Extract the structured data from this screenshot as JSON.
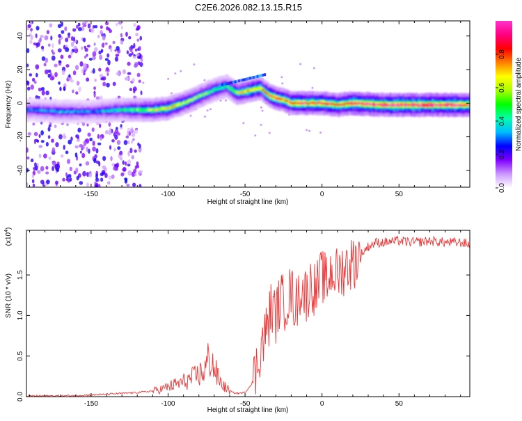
{
  "title": "C2E6.2026.082.13.15.R15",
  "charts": {
    "top": {
      "xlabel": "Height of straight line (km)",
      "ylabel": "Frequency (Hz)",
      "colorbar_label": "Normalized spectral amplitude"
    },
    "bottom": {
      "xlabel": "Height of straight line (km)",
      "ylabel": "SNR (10 * v/v)",
      "exponent_label": "(x10",
      "exponent_power": "4",
      "exponent_close": ")"
    }
  },
  "chart_data": [
    {
      "type": "heatmap",
      "title": "C2E6.2026.082.13.15.R15",
      "xlabel": "Height of straight line (km)",
      "ylabel": "Frequency (Hz)",
      "xlim": [
        -192,
        96
      ],
      "ylim": [
        -50,
        49
      ],
      "x_ticks": [
        "-150",
        "-100",
        "-50",
        "0",
        "50"
      ],
      "x_tick_values": [
        -150,
        -100,
        -50,
        0,
        50
      ],
      "y_ticks": [
        "-40",
        "-20",
        "0",
        "20",
        "40"
      ],
      "y_tick_values": [
        -40,
        -20,
        0,
        20,
        40
      ],
      "ridge": {
        "x": [
          -190,
          -170,
          -150,
          -130,
          -110,
          -100,
          -90,
          -80,
          -70,
          -62,
          -55,
          -50,
          -45,
          -40,
          -35,
          -30,
          -25,
          -20,
          -10,
          0,
          10,
          20,
          40,
          60,
          80,
          95
        ],
        "y": [
          -4,
          -5,
          -5,
          -4,
          -4,
          -3,
          0,
          4,
          8,
          10,
          6,
          7,
          8,
          9,
          5,
          3,
          2,
          0,
          0,
          0,
          -1,
          0,
          -1,
          -1,
          -1,
          -1
        ],
        "peak_amplitude": [
          0.3,
          0.35,
          0.3,
          0.45,
          0.6,
          0.7,
          0.6,
          0.55,
          0.5,
          0.45,
          0.65,
          0.7,
          0.75,
          0.7,
          0.8,
          0.85,
          0.8,
          0.85,
          0.9,
          0.9,
          0.85,
          0.95,
          1.0,
          1.0,
          1.0,
          0.95
        ]
      },
      "colorbar": {
        "label": "Normalized spectral amplitude",
        "range": [
          0,
          1
        ],
        "ticks": [
          "0.0",
          "0.2",
          "0.4",
          "0.6",
          "0.8"
        ],
        "tick_values": [
          0,
          0.2,
          0.4,
          0.6,
          0.8
        ],
        "colors": [
          "#ffffff",
          "#cc99ff",
          "#8000ff",
          "#0000ff",
          "#00bbff",
          "#00ffaa",
          "#00ff00",
          "#aaff00",
          "#ffff00",
          "#ff8000",
          "#ff0000",
          "#ff0080",
          "#ff33cc"
        ]
      },
      "grid": false
    },
    {
      "type": "line",
      "xlabel": "Height of straight line (km)",
      "ylabel": "SNR (10 * v/v)",
      "xlim": [
        -192,
        96
      ],
      "ylim": [
        0,
        2.05
      ],
      "x_ticks": [
        "-150",
        "-100",
        "-50",
        "0",
        "50"
      ],
      "x_tick_values": [
        -150,
        -100,
        -50,
        0,
        50
      ],
      "y_ticks": [
        "0.0",
        "0.5",
        "1.0",
        "1.5"
      ],
      "y_tick_values": [
        0,
        0.5,
        1.0,
        1.5
      ],
      "color": "#ee3333",
      "series": [
        {
          "x": [
            -192,
            -170,
            -150,
            -140,
            -130,
            -120,
            -110,
            -105,
            -100,
            -95,
            -90,
            -85,
            -80,
            -76,
            -73,
            -71,
            -68,
            -65,
            -62,
            -58,
            -55,
            -50,
            -46,
            -43,
            -40,
            -38,
            -35,
            -33,
            -30,
            -27,
            -24,
            -20,
            -17,
            -14,
            -10,
            -7,
            -4,
            0,
            3,
            6,
            10,
            15,
            20,
            25,
            30,
            35,
            40,
            50,
            60,
            70,
            80,
            90,
            96
          ],
          "values": [
            0.01,
            0.01,
            0.02,
            0.03,
            0.04,
            0.05,
            0.07,
            0.09,
            0.12,
            0.15,
            0.18,
            0.22,
            0.27,
            0.33,
            0.5,
            0.4,
            0.25,
            0.15,
            0.1,
            0.05,
            0.04,
            0.05,
            0.15,
            0.3,
            0.6,
            0.7,
            0.9,
            1.1,
            1.0,
            1.2,
            1.15,
            1.3,
            1.1,
            1.35,
            1.25,
            1.4,
            1.3,
            1.5,
            1.4,
            1.55,
            1.5,
            1.6,
            1.65,
            1.75,
            1.85,
            1.9,
            1.9,
            1.92,
            1.9,
            1.92,
            1.9,
            1.9,
            1.88
          ]
        }
      ],
      "grid": false
    }
  ],
  "colors": {
    "frame": "#000000",
    "snr_line": "#ee3333"
  }
}
